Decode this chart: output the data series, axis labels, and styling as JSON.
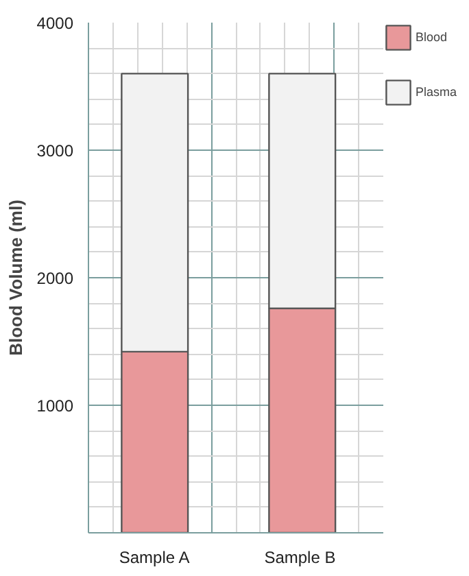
{
  "chart_data": {
    "type": "bar",
    "stacked": true,
    "ylabel": "Blood Volume (ml)",
    "categories": [
      "Sample A",
      "Sample  B"
    ],
    "series": [
      {
        "name": "Blood",
        "color": "#e8989a",
        "values": [
          1420,
          1760
        ]
      },
      {
        "name": "Plasma",
        "color": "#f2f2f2",
        "values": [
          2180,
          1840
        ]
      }
    ],
    "ylim": [
      0,
      4000
    ],
    "yticks": [
      1000,
      2000,
      3000,
      4000
    ],
    "grid": true,
    "legend": "top right"
  }
}
